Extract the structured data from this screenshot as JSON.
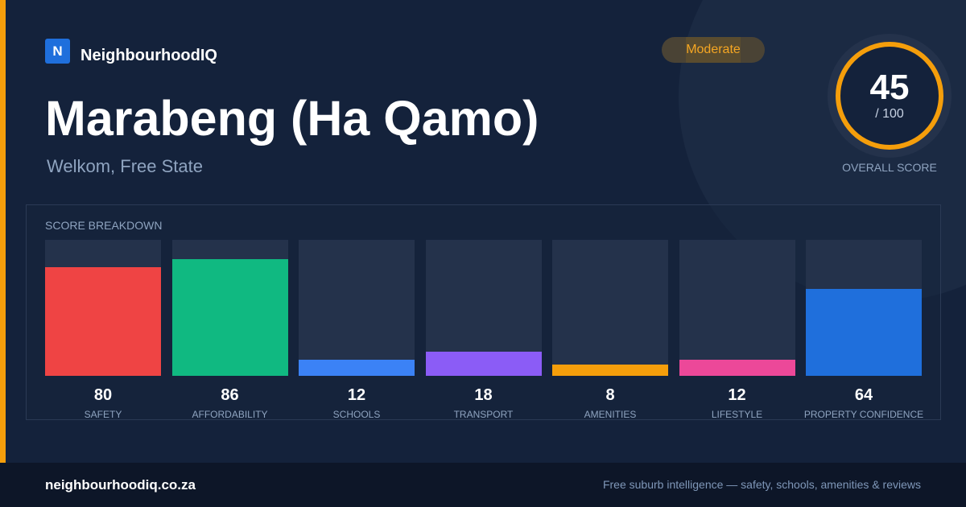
{
  "brand": {
    "logo_letter": "N",
    "name": "NeighbourhoodIQ",
    "color": "#1f6fdc"
  },
  "suburb": {
    "name": "Marabeng (Ha Qamo)",
    "location": "Welkom, Free State"
  },
  "rating_badge": {
    "label": "Moderate",
    "color": "#f5a623"
  },
  "overall": {
    "score": "45",
    "max_label": "/ 100",
    "label": "OVERALL SCORE",
    "value": 45,
    "max": 100,
    "ring_color": "#f59e0b"
  },
  "breakdown": {
    "title": "SCORE BREAKDOWN",
    "items": [
      {
        "label": "SAFETY",
        "value": 80,
        "display": "80",
        "color": "#ef4444"
      },
      {
        "label": "AFFORDABILITY",
        "value": 86,
        "display": "86",
        "color": "#10b981"
      },
      {
        "label": "SCHOOLS",
        "value": 12,
        "display": "12",
        "color": "#3b82f6"
      },
      {
        "label": "TRANSPORT",
        "value": 18,
        "display": "18",
        "color": "#8b5cf6"
      },
      {
        "label": "AMENITIES",
        "value": 8,
        "display": "8",
        "color": "#f59e0b"
      },
      {
        "label": "LIFESTYLE",
        "value": 12,
        "display": "12",
        "color": "#ec4899"
      },
      {
        "label": "PROPERTY CONFIDENCE",
        "value": 64,
        "display": "64",
        "color": "#1f6fdc"
      }
    ]
  },
  "footer": {
    "url": "neighbourhoodiq.co.za",
    "tagline": "Free suburb intelligence — safety, schools, amenities & reviews"
  }
}
